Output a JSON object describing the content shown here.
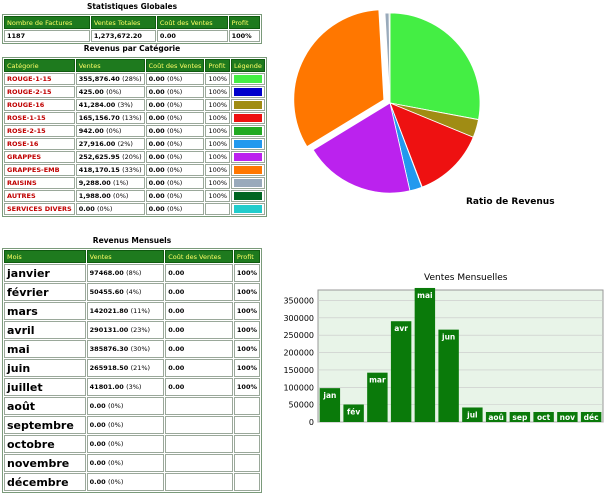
{
  "global": {
    "title": "Statistiques Globales",
    "headers": [
      "Nombre de Factures",
      "Ventes Totales",
      "Coût des Ventes",
      "Profit"
    ],
    "row": [
      "1187",
      "1,273,672.20",
      "0.00",
      "100%"
    ]
  },
  "categories": {
    "title": "Revenus par Catégorie",
    "headers": [
      "Catégorie",
      "Ventes",
      "Coût des Ventes",
      "Profit",
      "Légende"
    ],
    "rows": [
      {
        "name": "ROUGE-1-15",
        "sales": "355,876.40",
        "pct": "(28%)",
        "cost": "0.00",
        "cost_pct": "(0%)",
        "profit": "100%",
        "color": "#44ee44"
      },
      {
        "name": "ROUGE-2-15",
        "sales": "425.00",
        "pct": "(0%)",
        "cost": "0.00",
        "cost_pct": "(0%)",
        "profit": "100%",
        "color": "#0000cc"
      },
      {
        "name": "ROUGE-16",
        "sales": "41,284.00",
        "pct": "(3%)",
        "cost": "0.00",
        "cost_pct": "(0%)",
        "profit": "100%",
        "color": "#a08c14"
      },
      {
        "name": "ROSE-1-15",
        "sales": "165,156.70",
        "pct": "(13%)",
        "cost": "0.00",
        "cost_pct": "(0%)",
        "profit": "100%",
        "color": "#ee1111"
      },
      {
        "name": "ROSE-2-15",
        "sales": "942.00",
        "pct": "(0%)",
        "cost": "0.00",
        "cost_pct": "(0%)",
        "profit": "100%",
        "color": "#22aa22"
      },
      {
        "name": "ROSE-16",
        "sales": "27,916.00",
        "pct": "(2%)",
        "cost": "0.00",
        "cost_pct": "(0%)",
        "profit": "100%",
        "color": "#2299ee"
      },
      {
        "name": "GRAPPES",
        "sales": "252,625.95",
        "pct": "(20%)",
        "cost": "0.00",
        "cost_pct": "(0%)",
        "profit": "100%",
        "color": "#bb22ee"
      },
      {
        "name": "GRAPPES-EMB",
        "sales": "418,170.15",
        "pct": "(33%)",
        "cost": "0.00",
        "cost_pct": "(0%)",
        "profit": "100%",
        "color": "#ff7700"
      },
      {
        "name": "RAISINS",
        "sales": "9,288.00",
        "pct": "(1%)",
        "cost": "0.00",
        "cost_pct": "(0%)",
        "profit": "100%",
        "color": "#99aabb"
      },
      {
        "name": "AUTRES",
        "sales": "1,988.00",
        "pct": "(0%)",
        "cost": "0.00",
        "cost_pct": "(0%)",
        "profit": "100%",
        "color": "#006622"
      },
      {
        "name": "SERVICES DIVERS",
        "sales": "0.00",
        "pct": "(0%)",
        "cost": "0.00",
        "cost_pct": "(0%)",
        "profit": "",
        "color": "#22cccc"
      }
    ]
  },
  "monthly": {
    "title": "Revenus Mensuels",
    "headers": [
      "Mois",
      "Ventes",
      "Coût des Ventes",
      "Profit"
    ],
    "rows": [
      {
        "month": "janvier",
        "sales": "97468.00",
        "pct": "(8%)",
        "cost": "0.00",
        "profit": "100%"
      },
      {
        "month": "février",
        "sales": "50455.60",
        "pct": "(4%)",
        "cost": "0.00",
        "profit": "100%"
      },
      {
        "month": "mars",
        "sales": "142021.80",
        "pct": "(11%)",
        "cost": "0.00",
        "profit": "100%"
      },
      {
        "month": "avril",
        "sales": "290131.00",
        "pct": "(23%)",
        "cost": "0.00",
        "profit": "100%"
      },
      {
        "month": "mai",
        "sales": "385876.30",
        "pct": "(30%)",
        "cost": "0.00",
        "profit": "100%"
      },
      {
        "month": "juin",
        "sales": "265918.50",
        "pct": "(21%)",
        "cost": "0.00",
        "profit": "100%"
      },
      {
        "month": "juillet",
        "sales": "41801.00",
        "pct": "(3%)",
        "cost": "0.00",
        "profit": "100%"
      },
      {
        "month": "août",
        "sales": "0.00",
        "pct": "(0%)",
        "cost": "",
        "profit": ""
      },
      {
        "month": "septembre",
        "sales": "0.00",
        "pct": "(0%)",
        "cost": "",
        "profit": ""
      },
      {
        "month": "octobre",
        "sales": "0.00",
        "pct": "(0%)",
        "cost": "",
        "profit": ""
      },
      {
        "month": "novembre",
        "sales": "0.00",
        "pct": "(0%)",
        "cost": "",
        "profit": ""
      },
      {
        "month": "décembre",
        "sales": "0.00",
        "pct": "(0%)",
        "cost": "",
        "profit": ""
      }
    ]
  },
  "chart_data": [
    {
      "type": "pie",
      "title": "Ratio de Revenus",
      "categories": [
        "ROUGE-1-15",
        "ROUGE-2-15",
        "ROUGE-16",
        "ROSE-1-15",
        "ROSE-2-15",
        "ROSE-16",
        "GRAPPES",
        "GRAPPES-EMB",
        "RAISINS",
        "AUTRES",
        "SERVICES DIVERS"
      ],
      "values": [
        355876.4,
        425.0,
        41284.0,
        165156.7,
        942.0,
        27916.0,
        252625.95,
        418170.15,
        9288.0,
        1988.0,
        0.0
      ],
      "colors": [
        "#44ee44",
        "#0000cc",
        "#a08c14",
        "#ee1111",
        "#22aa22",
        "#2299ee",
        "#bb22ee",
        "#ff7700",
        "#99aabb",
        "#006622",
        "#22cccc"
      ],
      "exploded": "GRAPPES-EMB"
    },
    {
      "type": "bar",
      "title": "Ventes Mensuelles",
      "categories": [
        "jan",
        "fév",
        "mar",
        "avr",
        "mai",
        "jun",
        "jul",
        "aoû",
        "sep",
        "oct",
        "nov",
        "déc"
      ],
      "values": [
        97468.0,
        50455.6,
        142021.8,
        290131.0,
        385876.3,
        265918.5,
        41801.0,
        0,
        0,
        0,
        0,
        0
      ],
      "ylim": [
        0,
        380000
      ],
      "yticks": [
        "0",
        "50000",
        "100000",
        "150000",
        "200000",
        "250000",
        "300000",
        "350000"
      ],
      "ytick_values": [
        0,
        50000,
        100000,
        150000,
        200000,
        250000,
        300000,
        350000
      ],
      "grid": true,
      "bar_color": "#0a7a0a",
      "plot_bg": "#e8f4e8"
    }
  ]
}
